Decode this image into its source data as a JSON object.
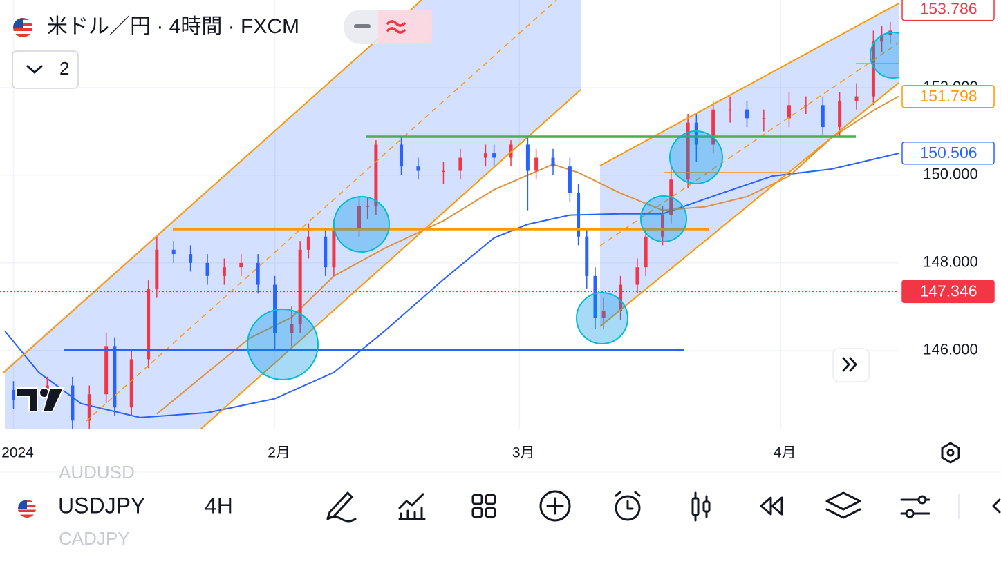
{
  "header": {
    "symbol_title": "米ドル／円 · 4時間 · FXCM",
    "indicator_count": "2"
  },
  "chart_data": {
    "type": "candlestick",
    "x": [
      0,
      4,
      7,
      9,
      11,
      12,
      14,
      16,
      17,
      19,
      21,
      23,
      25,
      27,
      29,
      31,
      33,
      34,
      35,
      37,
      38,
      41,
      42,
      43,
      46,
      48,
      51,
      53,
      56,
      57,
      59,
      61,
      62,
      64,
      66,
      67,
      68,
      69,
      70,
      72,
      74,
      75,
      77,
      78,
      80,
      81,
      83,
      85,
      87,
      89,
      92,
      94,
      96,
      98,
      100,
      102,
      103,
      104
    ],
    "open": [
      145.1,
      144.87,
      145.2,
      144.4,
      145.0,
      146.1,
      144.7,
      145.8,
      147.4,
      148.3,
      148.2,
      148.0,
      147.7,
      147.9,
      148.0,
      147.5,
      146.4,
      146.6,
      148.3,
      148.6,
      147.9,
      148.8,
      149.3,
      149.3,
      150.7,
      150.2,
      150.1,
      150.1,
      150.4,
      150.5,
      150.4,
      150.7,
      150.1,
      150.4,
      150.2,
      149.6,
      148.6,
      147.7,
      146.75,
      146.9,
      147.5,
      147.9,
      148.6,
      149.1,
      149.9,
      151.2,
      150.7,
      151.5,
      151.5,
      151.3,
      151.3,
      151.6,
      151.6,
      151.1,
      151.7,
      151.8,
      153.05,
      153.2
    ],
    "high": [
      145.3,
      145.4,
      145.4,
      145.2,
      146.4,
      146.3,
      146.0,
      147.6,
      148.6,
      148.5,
      148.4,
      148.2,
      148.1,
      148.2,
      148.2,
      147.7,
      147.0,
      148.5,
      148.9,
      148.8,
      149.0,
      149.5,
      149.5,
      150.8,
      150.9,
      150.4,
      150.3,
      150.6,
      150.7,
      150.7,
      150.8,
      150.9,
      150.6,
      150.6,
      150.4,
      149.8,
      148.8,
      147.9,
      147.2,
      147.7,
      148.1,
      148.8,
      149.3,
      150.2,
      151.4,
      151.4,
      151.7,
      151.8,
      151.7,
      151.5,
      151.9,
      151.8,
      151.8,
      151.9,
      152.1,
      153.3,
      153.4,
      153.5
    ],
    "low": [
      144.67,
      144.67,
      144.2,
      144.2,
      144.8,
      144.5,
      144.5,
      145.6,
      147.2,
      148.0,
      147.8,
      147.5,
      147.5,
      147.7,
      147.3,
      146.0,
      146.1,
      146.4,
      148.1,
      147.7,
      147.7,
      148.6,
      149.0,
      149.1,
      150.0,
      149.9,
      149.8,
      149.9,
      150.2,
      150.2,
      150.2,
      149.2,
      149.9,
      150.0,
      149.4,
      148.4,
      147.4,
      146.5,
      146.5,
      146.7,
      147.3,
      147.7,
      148.4,
      148.9,
      149.7,
      150.3,
      150.5,
      151.2,
      151.1,
      151.0,
      151.1,
      151.4,
      150.9,
      150.9,
      151.5,
      151.6,
      152.8,
      153.0
    ],
    "close": [
      144.87,
      145.2,
      144.4,
      145.0,
      146.1,
      144.7,
      145.8,
      147.4,
      148.3,
      148.2,
      148.0,
      147.7,
      147.9,
      148.0,
      147.5,
      146.4,
      146.6,
      148.3,
      148.6,
      147.9,
      148.8,
      149.3,
      149.3,
      150.7,
      150.2,
      150.1,
      150.1,
      150.4,
      150.5,
      150.4,
      150.7,
      150.1,
      150.4,
      150.2,
      149.6,
      148.6,
      147.7,
      146.75,
      146.9,
      147.5,
      147.9,
      148.6,
      149.1,
      149.9,
      151.2,
      150.7,
      151.5,
      151.5,
      151.3,
      151.3,
      151.6,
      151.6,
      151.1,
      151.7,
      151.8,
      153.05,
      153.2,
      153.3
    ],
    "up_color": "#f23645",
    "down_color": "#2962ff",
    "series": [
      {
        "color": "#2962ff",
        "x": [
          -1,
          3,
          8,
          15,
          23,
          31,
          38,
          44,
          51,
          57,
          61,
          66,
          72,
          77,
          84,
          90,
          97,
          105
        ],
        "values": [
          146.44,
          145.5,
          144.79,
          144.47,
          144.58,
          144.9,
          145.5,
          146.44,
          147.62,
          148.57,
          148.88,
          149.09,
          149.12,
          149.12,
          149.59,
          149.98,
          150.14,
          150.5
        ]
      },
      {
        "color": "#e0913a",
        "x": [
          17,
          23,
          28,
          33,
          38,
          44,
          51,
          57,
          64,
          67,
          72,
          77,
          82,
          87,
          92,
          97,
          102,
          105
        ],
        "values": [
          144.55,
          145.5,
          146.28,
          146.76,
          147.7,
          148.33,
          148.96,
          149.67,
          150.25,
          150.06,
          149.59,
          149.2,
          149.28,
          149.51,
          149.98,
          150.85,
          151.48,
          151.8
        ]
      }
    ],
    "xlim": [
      -1.6,
      105
    ],
    "ylim": [
      144.2,
      154.0
    ],
    "xticks": [
      {
        "value": 0,
        "label": "2024"
      },
      {
        "value": 31,
        "label": "2月"
      },
      {
        "value": 60,
        "label": "3月"
      },
      {
        "value": 91,
        "label": "4月"
      }
    ],
    "yticks": [
      {
        "value": 146,
        "label": "146.000"
      },
      {
        "value": 148,
        "label": "148.000"
      },
      {
        "value": 150,
        "label": "150.000"
      },
      {
        "value": 152,
        "label": "152.000"
      }
    ],
    "grid": true,
    "price_labels": [
      {
        "value": 153.786,
        "color": "#f23645",
        "style": "outline"
      },
      {
        "value": 151.798,
        "color": "#ff9800",
        "style": "outline"
      },
      {
        "value": 150.506,
        "color": "#2962ff",
        "style": "outline"
      },
      {
        "value": 147.346,
        "color": "#f23645",
        "style": "filled"
      }
    ]
  },
  "toolbar": {
    "symbol": "USDJPY",
    "interval": "4H",
    "symbol_above": "AUDUSD",
    "symbol_below": "CADJPY"
  }
}
